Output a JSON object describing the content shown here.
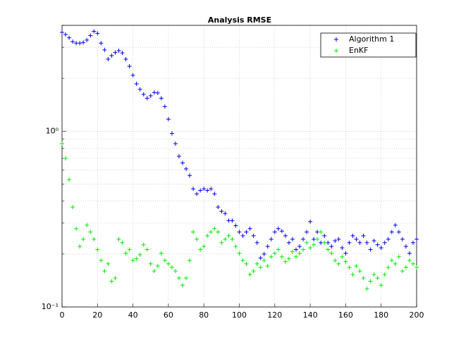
{
  "chart_data": {
    "type": "scatter",
    "title": "Analysis RMSE",
    "log_y": true,
    "grid": true,
    "legend": "upper right",
    "marker": "+",
    "x": [
      0,
      2,
      4,
      6,
      8,
      10,
      12,
      14,
      16,
      18,
      20,
      22,
      24,
      26,
      28,
      30,
      32,
      34,
      36,
      38,
      40,
      42,
      44,
      46,
      48,
      50,
      52,
      54,
      56,
      58,
      60,
      62,
      64,
      66,
      68,
      70,
      72,
      74,
      76,
      78,
      80,
      82,
      84,
      86,
      88,
      90,
      92,
      94,
      96,
      98,
      100,
      102,
      104,
      106,
      108,
      110,
      112,
      114,
      116,
      118,
      120,
      122,
      124,
      126,
      128,
      130,
      132,
      134,
      136,
      138,
      140,
      142,
      144,
      146,
      148,
      150,
      152,
      154,
      156,
      158,
      160,
      162,
      164,
      166,
      168,
      170,
      172,
      174,
      176,
      178,
      180,
      182,
      184,
      186,
      188,
      190,
      192,
      194,
      196,
      198,
      200
    ],
    "series": [
      {
        "name": "Algorithm 1",
        "color": "#0000ff",
        "values": [
          3.65,
          3.55,
          3.4,
          3.23,
          3.17,
          3.17,
          3.2,
          3.3,
          3.5,
          3.7,
          3.6,
          3.17,
          2.9,
          2.57,
          2.69,
          2.8,
          2.87,
          2.79,
          2.57,
          2.34,
          2.08,
          1.86,
          1.73,
          1.62,
          1.54,
          1.59,
          1.66,
          1.65,
          1.54,
          1.38,
          1.17,
          0.97,
          0.85,
          0.72,
          0.66,
          0.61,
          0.56,
          0.47,
          0.44,
          0.46,
          0.47,
          0.46,
          0.47,
          0.44,
          0.37,
          0.35,
          0.34,
          0.31,
          0.31,
          0.29,
          0.267,
          0.254,
          0.267,
          0.279,
          0.254,
          0.232,
          0.19,
          0.2,
          0.221,
          0.243,
          0.267,
          0.279,
          0.27,
          0.254,
          0.232,
          0.243,
          0.212,
          0.221,
          0.243,
          0.267,
          0.306,
          0.243,
          0.267,
          0.232,
          0.254,
          0.232,
          0.221,
          0.238,
          0.243,
          0.217,
          0.202,
          0.232,
          0.254,
          0.243,
          0.232,
          0.254,
          0.232,
          0.212,
          0.238,
          0.226,
          0.217,
          0.232,
          0.243,
          0.267,
          0.292,
          0.267,
          0.243,
          0.221,
          0.202,
          0.232,
          0.243
        ]
      },
      {
        "name": "EnKF",
        "color": "#00ee00",
        "values": [
          0.85,
          0.7,
          0.53,
          0.37,
          0.279,
          0.221,
          0.243,
          0.292,
          0.267,
          0.243,
          0.212,
          0.184,
          0.16,
          0.176,
          0.14,
          0.146,
          0.243,
          0.232,
          0.202,
          0.212,
          0.184,
          0.188,
          0.198,
          0.226,
          0.212,
          0.176,
          0.16,
          0.171,
          0.202,
          0.184,
          0.176,
          0.168,
          0.16,
          0.146,
          0.133,
          0.146,
          0.184,
          0.267,
          0.243,
          0.212,
          0.221,
          0.254,
          0.267,
          0.279,
          0.267,
          0.232,
          0.243,
          0.254,
          0.243,
          0.221,
          0.202,
          0.184,
          0.176,
          0.153,
          0.16,
          0.176,
          0.168,
          0.184,
          0.171,
          0.193,
          0.202,
          0.212,
          0.193,
          0.181,
          0.188,
          0.206,
          0.193,
          0.202,
          0.212,
          0.232,
          0.217,
          0.226,
          0.243,
          0.267,
          0.232,
          0.212,
          0.202,
          0.184,
          0.176,
          0.193,
          0.181,
          0.168,
          0.153,
          0.171,
          0.16,
          0.146,
          0.127,
          0.14,
          0.153,
          0.146,
          0.133,
          0.153,
          0.168,
          0.184,
          0.176,
          0.193,
          0.16,
          0.168,
          0.184,
          0.176,
          0.168
        ]
      }
    ],
    "xlim": [
      0,
      200
    ],
    "xticks": [
      0,
      20,
      40,
      60,
      80,
      100,
      120,
      140,
      160,
      180,
      200
    ],
    "ylim": [
      0.1,
      4
    ],
    "yticks": [
      {
        "value": 0.1,
        "label": "10⁻¹"
      },
      {
        "value": 1,
        "label": "10⁰"
      }
    ],
    "minor_yticks": [
      0.2,
      0.3,
      0.4,
      0.5,
      0.6,
      0.7,
      0.8,
      0.9,
      2,
      3,
      4
    ]
  }
}
